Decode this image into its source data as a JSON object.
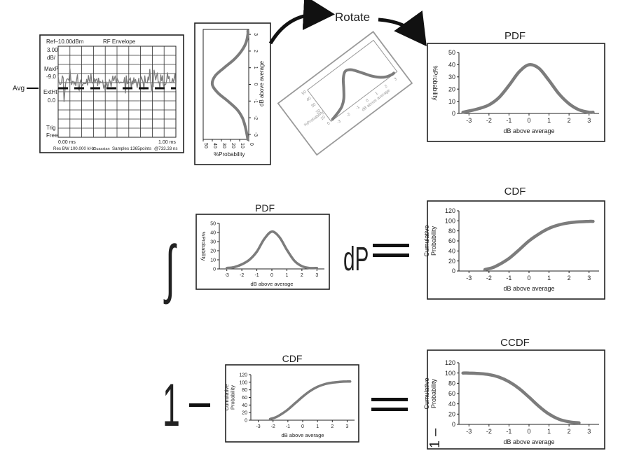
{
  "colors": {
    "curve": "#7c7c7c",
    "frame": "#222222",
    "rotated_frame": "#9a9a9a",
    "arrow": "#111111"
  },
  "analyzer": {
    "ref": "Ref–10.00dBm",
    "mode": "RF Envelope",
    "scale_val": "3.00",
    "scale_unit": "dB/",
    "maxp_label": "MaxP",
    "maxp_val": "-9.0",
    "extht_label": "ExtHt",
    "extht_val": "0.0",
    "trig_label": "Trig",
    "trig_val": "Free",
    "time_start": "0.00 ms",
    "time_end": "1.00 ms",
    "footer_left": "Res BW 100.000 kHz",
    "footer_mid1": "Guassian",
    "footer_mid2": "Samples 1365points",
    "footer_right": "@733.33 ns",
    "avg_label": "Avg"
  },
  "rotate_label": "Rotate",
  "vertical_pdf": {
    "xlabel": "%Probability",
    "ylabel": "dB above average",
    "x_ticks": [
      "50",
      "40",
      "30",
      "20",
      "10",
      "0"
    ],
    "y_ticks": [
      "3",
      "2",
      "1",
      "0",
      "-1",
      "-2",
      "-3"
    ]
  },
  "rotated_pdf": {
    "xlabel": "%Probability",
    "ylabel": "dB above average",
    "x_ticks": [
      "50",
      "40",
      "30",
      "20",
      "10",
      "0"
    ],
    "y_ticks": [
      "-3",
      "-2",
      "-1",
      "0",
      "1",
      "2",
      "3"
    ]
  },
  "formula": {
    "integral": "∫",
    "dp": "dP",
    "equals": "=",
    "one": "1",
    "minus": "–"
  },
  "chart_data": [
    {
      "id": "pdf-top",
      "type": "line",
      "title": "PDF",
      "xlabel": "dB above average",
      "ylabel": "%Probability",
      "xlim": [
        -3.5,
        3.5
      ],
      "ylim": [
        0,
        50
      ],
      "x_ticks": [
        "-3",
        "-2",
        "-1",
        "0",
        "1",
        "2",
        "3"
      ],
      "y_ticks": [
        "0",
        "10",
        "20",
        "30",
        "40",
        "50"
      ],
      "x": [
        -3.3,
        -3.0,
        -2.5,
        -2.0,
        -1.5,
        -1.0,
        -0.5,
        0.0,
        0.5,
        1.0,
        1.5,
        2.0,
        2.5,
        3.0,
        3.2
      ],
      "y": [
        1,
        2,
        4,
        7,
        13,
        23,
        34,
        40,
        37,
        27,
        16,
        8,
        3,
        1,
        1
      ]
    },
    {
      "id": "pdf-mid",
      "type": "line",
      "title": "PDF",
      "xlabel": "dB above average",
      "ylabel": "%Probability",
      "xlim": [
        -3.5,
        3.5
      ],
      "ylim": [
        0,
        50
      ],
      "x_ticks": [
        "-3",
        "-2",
        "-1",
        "0",
        "1",
        "2",
        "3"
      ],
      "y_ticks": [
        "0",
        "10",
        "20",
        "30",
        "40",
        "50"
      ],
      "x": [
        -3.0,
        -2.5,
        -2.0,
        -1.5,
        -1.0,
        -0.5,
        0.0,
        0.5,
        1.0,
        1.5,
        2.0,
        2.5,
        3.0
      ],
      "y": [
        1,
        2,
        5,
        10,
        19,
        33,
        41,
        35,
        21,
        9,
        3,
        1,
        1
      ]
    },
    {
      "id": "cdf-mid",
      "type": "line",
      "title": "CDF",
      "xlabel": "dB above average",
      "ylabel": "Cumulative Probability",
      "xlim": [
        -3.5,
        3.5
      ],
      "ylim": [
        0,
        120
      ],
      "x_ticks": [
        "-3",
        "-2",
        "-1",
        "0",
        "1",
        "2",
        "3"
      ],
      "y_ticks": [
        "0",
        "20",
        "40",
        "60",
        "80",
        "100",
        "120"
      ],
      "x": [
        -2.2,
        -1.8,
        -1.4,
        -1.0,
        -0.5,
        0.0,
        0.5,
        1.0,
        1.5,
        2.0,
        2.5,
        3.0,
        3.2
      ],
      "y": [
        3,
        7,
        15,
        25,
        42,
        60,
        74,
        85,
        92,
        96,
        98,
        99,
        99
      ]
    },
    {
      "id": "cdf-bot",
      "type": "line",
      "title": "CDF",
      "xlabel": "dB above average",
      "ylabel": "Cumulative Probability",
      "xlim": [
        -3.5,
        3.5
      ],
      "ylim": [
        0,
        120
      ],
      "x_ticks": [
        "-3",
        "-2",
        "-1",
        "0",
        "1",
        "2",
        "3"
      ],
      "y_ticks": [
        "0",
        "20",
        "40",
        "60",
        "80",
        "100",
        "120"
      ],
      "x": [
        -2.2,
        -1.8,
        -1.4,
        -1.0,
        -0.5,
        0.0,
        0.5,
        1.0,
        1.5,
        2.0,
        2.5,
        3.0,
        3.2
      ],
      "y": [
        3,
        8,
        17,
        28,
        45,
        62,
        77,
        88,
        95,
        99,
        101,
        102,
        102
      ]
    },
    {
      "id": "ccdf",
      "type": "line",
      "title": "CCDF",
      "xlabel": "dB above average",
      "ylabel": "Cumulative Probability",
      "xlim": [
        -3.5,
        3.5
      ],
      "ylim": [
        0,
        120
      ],
      "x_ticks": [
        "-3",
        "-2",
        "-1",
        "0",
        "1",
        "2",
        "3"
      ],
      "y_ticks": [
        "0",
        "20",
        "40",
        "60",
        "80",
        "100",
        "120"
      ],
      "x": [
        -3.3,
        -3.0,
        -2.5,
        -2.0,
        -1.5,
        -1.0,
        -0.5,
        0.0,
        0.5,
        1.0,
        1.5,
        2.0,
        2.5
      ],
      "y": [
        100,
        100,
        99,
        97,
        92,
        83,
        70,
        53,
        35,
        20,
        10,
        5,
        3
      ]
    }
  ]
}
